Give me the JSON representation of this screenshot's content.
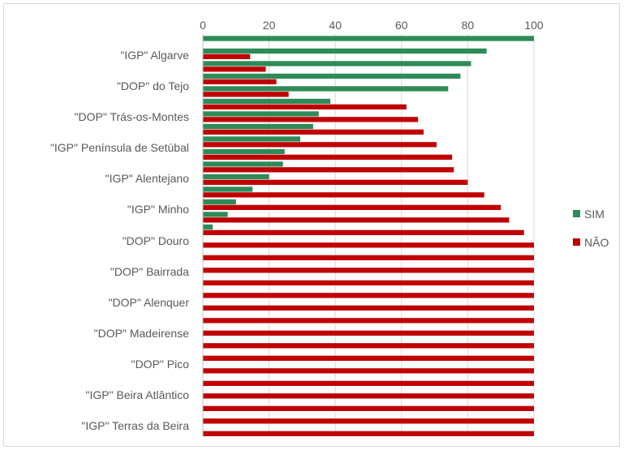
{
  "chart_data": {
    "type": "bar",
    "orientation": "horizontal",
    "axis_position": "top",
    "xlim": [
      0,
      100
    ],
    "x_ticks": [
      "0",
      "20",
      "40",
      "60",
      "80",
      "100"
    ],
    "grid": true,
    "legend_position": "right",
    "labeled_categories": [
      "\"IGP\" Algarve",
      "\"DOP\" do Tejo",
      "\"DOP\" Trás-os-Montes",
      "\"IGP\" Península de Setúbal",
      "\"IGP\" Alentejano",
      "\"IGP\" Minho",
      "\"DOP\" Douro",
      "\"DOP\" Bairrada",
      "\"DOP\" Alenquer",
      "\"DOP\" Madeirense",
      "\"DOP\" Pico",
      "\"IGP\" Beira Atlântico",
      "\"IGP\" Terras da Beira"
    ],
    "series": [
      {
        "name": "SIM",
        "color": "#2e8b57",
        "values": [
          100,
          85.7,
          81.0,
          77.8,
          74.1,
          38.5,
          35.0,
          33.3,
          29.4,
          24.7,
          24.2,
          20.0,
          15.0,
          10.0,
          7.5,
          3.0,
          0,
          0,
          0,
          0,
          0,
          0,
          0,
          0,
          0,
          0,
          0,
          0,
          0,
          0,
          0,
          0
        ]
      },
      {
        "name": "NÃO",
        "color": "#c00000",
        "values": [
          0,
          14.3,
          19.0,
          22.2,
          25.9,
          61.5,
          65.0,
          66.7,
          70.6,
          75.3,
          75.8,
          80.0,
          85.0,
          90.0,
          92.5,
          97.0,
          100,
          100,
          100,
          100,
          100,
          100,
          100,
          100,
          100,
          100,
          100,
          100,
          100,
          100,
          100,
          100
        ]
      }
    ]
  }
}
